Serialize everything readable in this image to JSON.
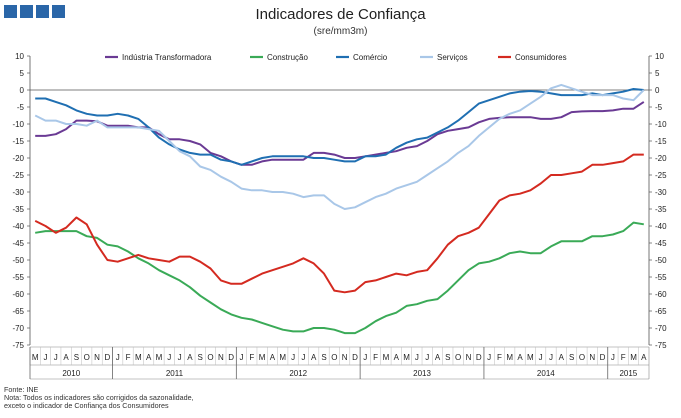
{
  "title": "Indicadores de Confiança",
  "subtitle": "(sre/mm3m)",
  "chart_data": {
    "type": "line",
    "title": "Indicadores de Confiança",
    "subtitle": "(sre/mm3m)",
    "ylim": [
      -75,
      10
    ],
    "yticks": [
      10,
      5,
      0,
      -5,
      -10,
      -15,
      -20,
      -25,
      -30,
      -35,
      -40,
      -45,
      -50,
      -55,
      -60,
      -65,
      -70,
      -75
    ],
    "grid": false,
    "legend_position": "top",
    "months": [
      "M",
      "J",
      "J",
      "A",
      "S",
      "O",
      "N",
      "D",
      "J",
      "F",
      "M",
      "A",
      "M",
      "J",
      "J",
      "A",
      "S",
      "O",
      "N",
      "D",
      "J",
      "F",
      "M",
      "A",
      "M",
      "J",
      "J",
      "A",
      "S",
      "O",
      "N",
      "D",
      "J",
      "F",
      "M",
      "A",
      "M",
      "J",
      "J",
      "A",
      "S",
      "O",
      "N",
      "D",
      "J",
      "F",
      "M",
      "A",
      "M",
      "J",
      "J",
      "A",
      "S",
      "O",
      "N",
      "D",
      "J",
      "F",
      "M",
      "A"
    ],
    "years": [
      {
        "label": "2010",
        "start": 0,
        "end": 8
      },
      {
        "label": "2011",
        "start": 8,
        "end": 20
      },
      {
        "label": "2012",
        "start": 20,
        "end": 32
      },
      {
        "label": "2013",
        "start": 32,
        "end": 44
      },
      {
        "label": "2014",
        "start": 44,
        "end": 56
      },
      {
        "label": "2015",
        "start": 56,
        "end": 60
      }
    ],
    "series": [
      {
        "name": "Indústria Transformadora",
        "color": "#6a3a94",
        "values": [
          -13.5,
          -13.5,
          -13,
          -11.5,
          -9,
          -9,
          -9.2,
          -10.5,
          -10.5,
          -10.5,
          -11,
          -11,
          -13,
          -14.5,
          -14.5,
          -15,
          -16,
          -18.5,
          -19.5,
          -21,
          -22,
          -22,
          -21,
          -20.5,
          -20.5,
          -20.5,
          -20.5,
          -18.5,
          -18.5,
          -19,
          -20,
          -20,
          -19.5,
          -19,
          -18.5,
          -18,
          -17,
          -16.5,
          -15,
          -13,
          -12,
          -11.5,
          -11,
          -9.5,
          -8.5,
          -8.2,
          -8,
          -8,
          -8,
          -8.5,
          -8.5,
          -8,
          -6.5,
          -6.3,
          -6.2,
          -6.2,
          -6,
          -5.5,
          -5.5,
          -3.5
        ]
      },
      {
        "name": "Construção",
        "color": "#3aaa57",
        "values": [
          -42,
          -41.5,
          -41.5,
          -41.5,
          -41.5,
          -43,
          -43.5,
          -45.5,
          -46,
          -47.5,
          -49.5,
          -51,
          -53,
          -54.5,
          -56,
          -58,
          -60.5,
          -62.5,
          -64.5,
          -66,
          -67,
          -67.5,
          -68.5,
          -69.5,
          -70.5,
          -71,
          -71,
          -70,
          -70,
          -70.5,
          -71.5,
          -71.5,
          -70,
          -68,
          -66.5,
          -65.5,
          -63.5,
          -63,
          -62,
          -61.5,
          -59,
          -56,
          -53,
          -51,
          -50.5,
          -49.5,
          -48,
          -47.5,
          -48,
          -48,
          -46,
          -44.5,
          -44.5,
          -44.5,
          -43,
          -43,
          -42.5,
          -41.5,
          -39,
          -39.5
        ]
      },
      {
        "name": "Comércio",
        "color": "#1f6fb2",
        "values": [
          -2.5,
          -2.5,
          -3.5,
          -4.5,
          -6,
          -7,
          -7.5,
          -7.5,
          -7,
          -7.5,
          -8.5,
          -11,
          -14,
          -16,
          -17.5,
          -18.5,
          -19,
          -19,
          -20.5,
          -21,
          -22,
          -21,
          -20,
          -19.5,
          -19.5,
          -19.5,
          -19.5,
          -20,
          -20,
          -20.5,
          -21,
          -21,
          -19.5,
          -19.5,
          -19,
          -17,
          -15.5,
          -14.5,
          -14,
          -12.5,
          -11,
          -9,
          -6.5,
          -4,
          -3,
          -2,
          -1,
          -0.5,
          -0.3,
          -0.5,
          -1,
          -1.5,
          -1.5,
          -1.5,
          -1,
          -1.5,
          -1,
          -0.5,
          0.3,
          0
        ]
      },
      {
        "name": "Serviços",
        "color": "#a9c7e8",
        "values": [
          -7.5,
          -9,
          -9,
          -10,
          -10,
          -10.5,
          -9,
          -11,
          -11,
          -11,
          -11,
          -11.5,
          -12,
          -15,
          -18,
          -19.5,
          -22.5,
          -23.5,
          -25.5,
          -27,
          -29,
          -29.5,
          -29.5,
          -30,
          -30,
          -30.5,
          -31.5,
          -31,
          -31,
          -33.5,
          -35,
          -34.5,
          -33,
          -31.5,
          -30.5,
          -29,
          -28,
          -27,
          -25,
          -23,
          -21,
          -18.5,
          -16.5,
          -13.5,
          -11,
          -8.5,
          -7,
          -6,
          -4,
          -2,
          0.5,
          1.5,
          0.5,
          -0.5,
          -1.5,
          -1.5,
          -1.5,
          -2.5,
          -3,
          0
        ]
      },
      {
        "name": "Consumidores",
        "color": "#d42a20",
        "values": [
          -38.5,
          -40,
          -42,
          -40.5,
          -37.5,
          -39.5,
          -45.5,
          -50,
          -50.5,
          -49.5,
          -48.5,
          -49.5,
          -50,
          -50.5,
          -49,
          -49,
          -50.5,
          -52.5,
          -56,
          -57,
          -57,
          -55.5,
          -54,
          -53,
          -52,
          -51,
          -49.5,
          -51,
          -54,
          -59,
          -59.5,
          -59,
          -56.5,
          -56,
          -55,
          -54,
          -54.5,
          -53.5,
          -53,
          -49.5,
          -45.5,
          -43,
          -42,
          -40.5,
          -36.5,
          -32.5,
          -31,
          -30.5,
          -29.5,
          -27.5,
          -25,
          -25,
          -24.5,
          -24,
          -22,
          -22,
          -21.5,
          -21,
          -19,
          -19
        ]
      }
    ]
  },
  "footnote": {
    "source": "Fonte: INE",
    "note_line1": "Nota: Todos os indicadores são corrigidos da sazonalidade,",
    "note_line2": "exceto o indicador de Confiança dos Consumidores"
  }
}
